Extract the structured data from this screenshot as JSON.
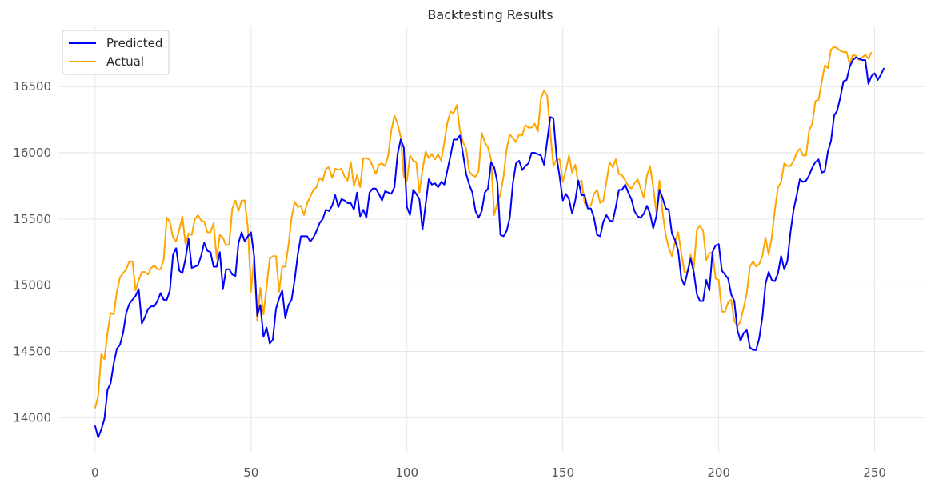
{
  "chart_data": {
    "type": "line",
    "title": "Backtesting Results",
    "xlabel": "",
    "ylabel": "",
    "xlim": [
      -12,
      266
    ],
    "ylim": [
      13730,
      16960
    ],
    "x_ticks": [
      0,
      50,
      100,
      150,
      200,
      250
    ],
    "x_tick_labels": [
      "0",
      "50",
      "100",
      "150",
      "200",
      "250"
    ],
    "y_ticks": [
      14000,
      14500,
      15000,
      15500,
      16000,
      16500
    ],
    "y_tick_labels": [
      "14000",
      "14500",
      "15000",
      "15500",
      "16000",
      "16500"
    ],
    "grid": true,
    "legend_position": "top-left",
    "series": [
      {
        "name": "Predicted",
        "color": "#0000ff",
        "x_start": 0,
        "values": [
          13940,
          13850,
          13910,
          13990,
          14210,
          14260,
          14410,
          14520,
          14550,
          14640,
          14790,
          14860,
          14890,
          14920,
          14970,
          14710,
          14760,
          14820,
          14840,
          14840,
          14880,
          14940,
          14890,
          14890,
          14960,
          15230,
          15280,
          15110,
          15090,
          15200,
          15350,
          15130,
          15140,
          15150,
          15220,
          15320,
          15260,
          15250,
          15140,
          15140,
          15250,
          14970,
          15120,
          15120,
          15080,
          15070,
          15320,
          15400,
          15330,
          15370,
          15400,
          15220,
          14770,
          14850,
          14610,
          14680,
          14560,
          14590,
          14820,
          14900,
          14960,
          14750,
          14850,
          14890,
          15040,
          15230,
          15370,
          15370,
          15370,
          15330,
          15360,
          15410,
          15470,
          15500,
          15570,
          15560,
          15600,
          15680,
          15590,
          15650,
          15640,
          15620,
          15620,
          15570,
          15700,
          15520,
          15570,
          15510,
          15700,
          15730,
          15730,
          15690,
          15640,
          15710,
          15700,
          15690,
          15740,
          15990,
          16100,
          16040,
          15590,
          15530,
          15720,
          15690,
          15650,
          15420,
          15610,
          15800,
          15760,
          15770,
          15740,
          15780,
          15760,
          15870,
          15980,
          16100,
          16100,
          16130,
          15990,
          15840,
          15760,
          15700,
          15560,
          15510,
          15560,
          15700,
          15730,
          15930,
          15890,
          15780,
          15380,
          15370,
          15410,
          15510,
          15770,
          15920,
          15940,
          15870,
          15900,
          15920,
          16000,
          16000,
          15990,
          15980,
          15910,
          16090,
          16270,
          16260,
          15970,
          15820,
          15640,
          15690,
          15650,
          15540,
          15640,
          15790,
          15680,
          15680,
          15580,
          15580,
          15510,
          15380,
          15370,
          15480,
          15530,
          15490,
          15480,
          15590,
          15720,
          15720,
          15760,
          15700,
          15650,
          15560,
          15520,
          15510,
          15540,
          15600,
          15540,
          15430,
          15520,
          15720,
          15660,
          15580,
          15570,
          15390,
          15340,
          15260,
          15050,
          15000,
          15100,
          15200,
          15100,
          14930,
          14880,
          14880,
          15040,
          14960,
          15250,
          15300,
          15310,
          15110,
          15080,
          15050,
          14930,
          14880,
          14660,
          14580,
          14640,
          14660,
          14530,
          14510,
          14510,
          14600,
          14760,
          15010,
          15100,
          15040,
          15030,
          15090,
          15220,
          15120,
          15180,
          15400,
          15570,
          15680,
          15800,
          15780,
          15790,
          15830,
          15890,
          15930,
          15950,
          15850,
          15860,
          16010,
          16090,
          16280,
          16320,
          16420,
          16540,
          16550,
          16650,
          16700,
          16720,
          16710,
          16700,
          16700,
          16520,
          16580,
          16600,
          16550,
          16590,
          16640
        ]
      },
      {
        "name": "Actual",
        "color": "#ffa500",
        "x_start": 0,
        "values": [
          14070,
          14160,
          14480,
          14440,
          14640,
          14790,
          14780,
          14950,
          15060,
          15090,
          15120,
          15180,
          15180,
          14960,
          15040,
          15100,
          15100,
          15080,
          15130,
          15150,
          15120,
          15120,
          15190,
          15510,
          15480,
          15360,
          15330,
          15420,
          15520,
          15310,
          15390,
          15380,
          15500,
          15530,
          15490,
          15480,
          15400,
          15400,
          15470,
          15200,
          15380,
          15360,
          15300,
          15310,
          15580,
          15640,
          15560,
          15640,
          15640,
          15430,
          14950,
          15220,
          14730,
          14980,
          14780,
          14990,
          15200,
          15220,
          15220,
          14950,
          15140,
          15140,
          15300,
          15510,
          15630,
          15590,
          15600,
          15530,
          15620,
          15670,
          15720,
          15740,
          15810,
          15790,
          15880,
          15890,
          15810,
          15880,
          15870,
          15880,
          15820,
          15790,
          15930,
          15750,
          15830,
          15740,
          15960,
          15960,
          15950,
          15900,
          15840,
          15910,
          15920,
          15900,
          15980,
          16170,
          16280,
          16220,
          16120,
          15820,
          15790,
          15980,
          15940,
          15930,
          15700,
          15870,
          16010,
          15960,
          15990,
          15950,
          15990,
          15940,
          16080,
          16230,
          16310,
          16300,
          16360,
          16170,
          16080,
          16030,
          15860,
          15830,
          15820,
          15860,
          16150,
          16080,
          16040,
          15950,
          15530,
          15620,
          15690,
          15820,
          16030,
          16140,
          16110,
          16080,
          16140,
          16130,
          16210,
          16190,
          16190,
          16220,
          16160,
          16410,
          16470,
          16430,
          16150,
          15900,
          15950,
          15950,
          15780,
          15870,
          15980,
          15850,
          15910,
          15770,
          15790,
          15620,
          15600,
          15600,
          15690,
          15720,
          15620,
          15640,
          15780,
          15930,
          15890,
          15950,
          15840,
          15830,
          15790,
          15750,
          15730,
          15770,
          15800,
          15730,
          15660,
          15830,
          15900,
          15740,
          15550,
          15790,
          15550,
          15380,
          15280,
          15220,
          15330,
          15400,
          15240,
          15100,
          15100,
          15230,
          15120,
          15420,
          15450,
          15410,
          15190,
          15240,
          15250,
          15050,
          15040,
          14800,
          14800,
          14870,
          14890,
          14730,
          14690,
          14730,
          14830,
          14940,
          15140,
          15180,
          15140,
          15160,
          15220,
          15360,
          15230,
          15360,
          15570,
          15740,
          15780,
          15920,
          15900,
          15900,
          15940,
          16000,
          16030,
          15980,
          15980,
          16170,
          16220,
          16390,
          16400,
          16530,
          16660,
          16640,
          16780,
          16800,
          16790,
          16770,
          16760,
          16760,
          16670,
          16740,
          16730,
          16700,
          16720,
          16740,
          16710,
          16760
        ]
      }
    ]
  }
}
